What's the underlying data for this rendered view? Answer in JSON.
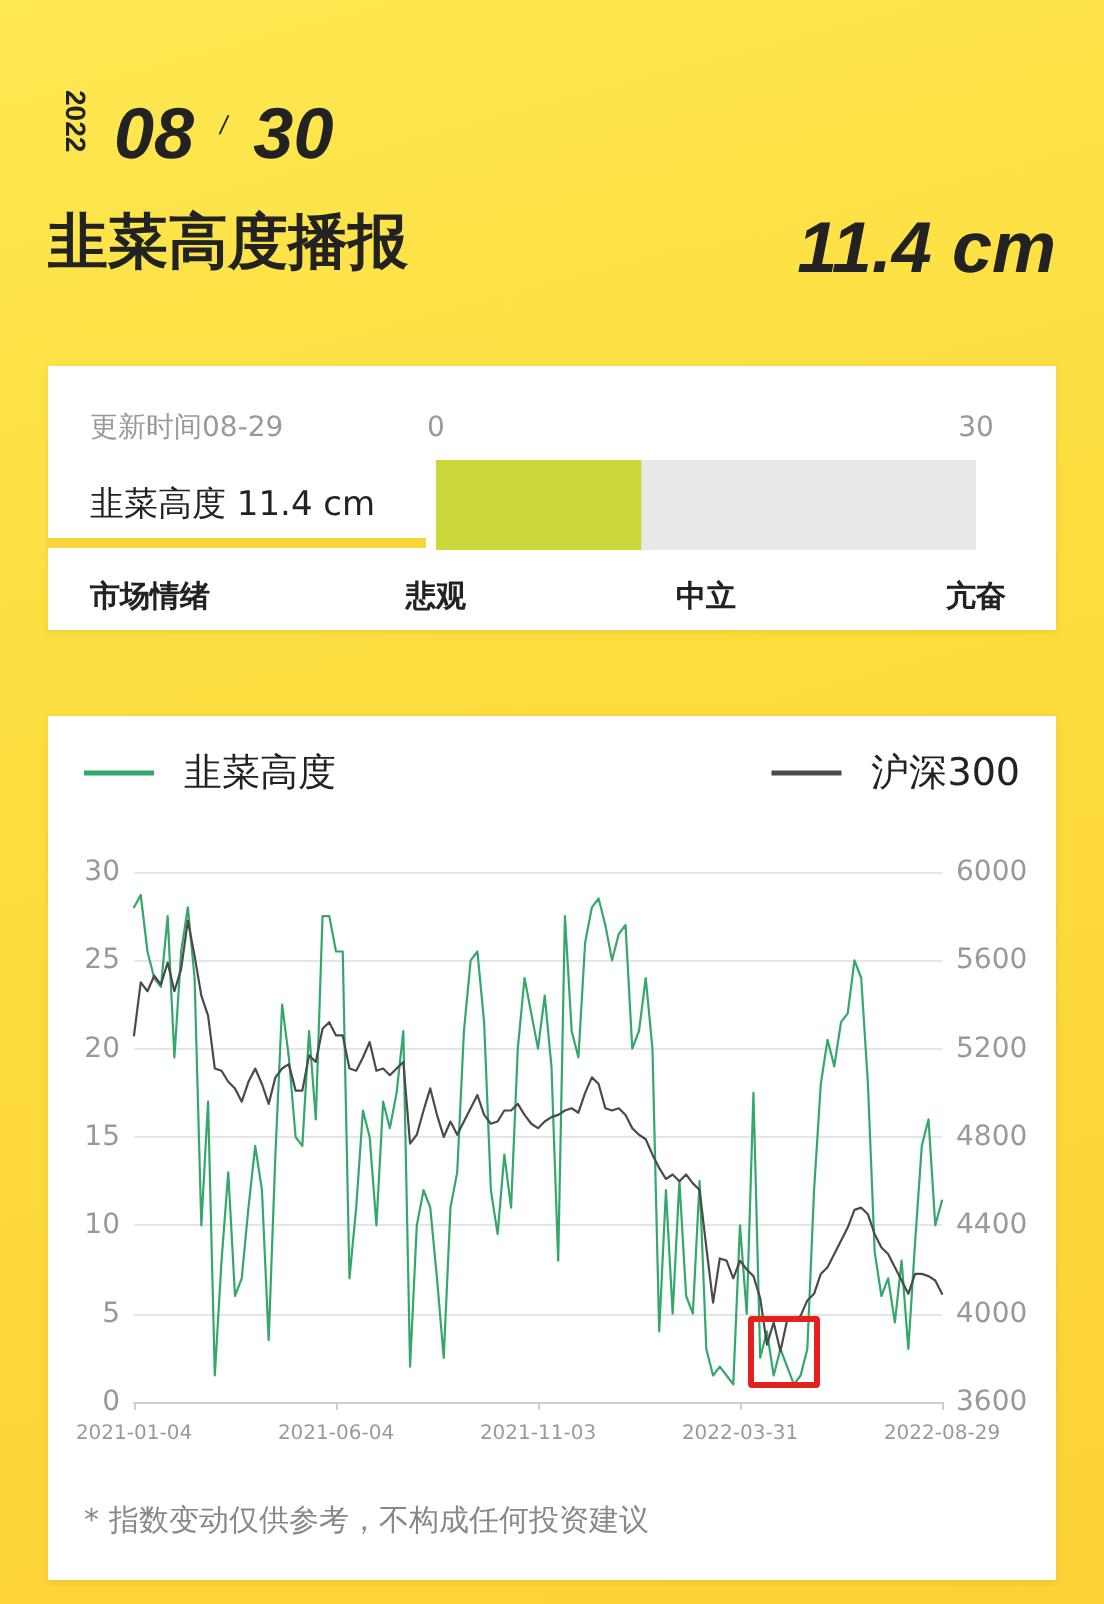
{
  "chart_data": [
    {
      "type": "bar",
      "orientation": "horizontal",
      "title": "韭菜高度播报",
      "subtitle": "更新时间08-29",
      "annotations": [
        "2022",
        "08 $^{/}$ 30",
        "11.4 cm",
        "市场情绪",
        "悲观",
        "中立",
        "亢奋"
      ],
      "categories": [
        "韭菜高度 11.4 cm"
      ],
      "values": [
        11.4
      ],
      "color": "#c9d838",
      "xlim": [
        0,
        30
      ],
      "xticks": [
        0,
        30
      ]
    },
    {
      "type": "line",
      "categories": [
        "2021-01-04",
        null,
        null,
        null,
        null,
        null,
        null,
        null,
        null,
        null,
        null,
        null,
        null,
        null,
        null,
        null,
        null,
        null,
        null,
        null,
        null,
        null,
        null,
        null,
        null,
        null,
        null,
        null,
        null,
        null,
        "2021-06-04",
        null,
        null,
        null,
        null,
        null,
        null,
        null,
        null,
        null,
        null,
        null,
        null,
        null,
        null,
        null,
        null,
        null,
        null,
        null,
        null,
        null,
        null,
        null,
        null,
        null,
        null,
        null,
        null,
        null,
        "2021-11-03",
        null,
        null,
        null,
        null,
        null,
        null,
        null,
        null,
        null,
        null,
        null,
        null,
        null,
        null,
        null,
        null,
        null,
        null,
        null,
        null,
        null,
        null,
        null,
        null,
        null,
        null,
        null,
        null,
        null,
        "2022-03-31",
        null,
        null,
        null,
        null,
        null,
        null,
        null,
        null,
        null,
        null,
        null,
        null,
        null,
        null,
        null,
        null,
        null,
        null,
        null,
        null,
        null,
        null,
        null,
        null,
        null,
        null,
        null,
        null,
        null,
        "2022-08-29"
      ],
      "series": [
        {
          "name": "韭菜高度",
          "color": "#33a86a",
          "values": [
            28.0,
            28.7,
            25.5,
            24.0,
            23.5,
            27.5,
            19.5,
            25.5,
            28.0,
            24.0,
            10.0,
            17.0,
            1.5,
            8.0,
            13.0,
            6.0,
            7.0,
            11.0,
            14.5,
            12.0,
            3.5,
            14.0,
            22.5,
            19.5,
            15.0,
            14.5,
            21.0,
            16.0,
            27.5,
            27.5,
            25.5,
            25.5,
            7.0,
            11.0,
            16.5,
            15.0,
            10.0,
            17.0,
            15.5,
            17.5,
            21.0,
            2.0,
            10.0,
            12.0,
            11.0,
            7.0,
            2.5,
            11.0,
            13.0,
            21.0,
            25.0,
            25.5,
            21.5,
            12.0,
            9.5,
            14.0,
            11.0,
            20.0,
            24.0,
            22.0,
            20.0,
            23.0,
            19.0,
            8.0,
            27.5,
            21.0,
            19.5,
            26.0,
            28.0,
            28.5,
            27.0,
            25.0,
            26.5,
            27.0,
            20.0,
            21.0,
            24.0,
            20.0,
            4.0,
            12.0,
            5.0,
            12.5,
            6.0,
            5.0,
            12.5,
            3.0,
            1.5,
            2.0,
            1.5,
            1.0,
            10.0,
            5.0,
            17.5,
            2.5,
            4.0,
            1.5,
            3.0,
            2.0,
            1.0,
            1.5,
            3.0,
            12.0,
            18.0,
            20.5,
            19.0,
            21.5,
            22.0,
            25.0,
            24.0,
            18.0,
            8.5,
            6.0,
            7.0,
            4.5,
            8.0,
            3.0,
            9.0,
            14.5,
            16.0,
            10.0,
            11.4
          ]
        },
        {
          "name": "沪深300",
          "color": "#4a4a4a",
          "axis": "y2",
          "values": [
            5260,
            5500,
            5460,
            5530,
            5490,
            5590,
            5460,
            5560,
            5780,
            5620,
            5440,
            5350,
            5110,
            5100,
            5050,
            5020,
            4960,
            5050,
            5110,
            5040,
            4950,
            5070,
            5110,
            5130,
            5010,
            5010,
            5170,
            5140,
            5290,
            5320,
            5260,
            5260,
            5110,
            5100,
            5160,
            5230,
            5100,
            5110,
            5080,
            5110,
            5140,
            4770,
            4810,
            4920,
            5020,
            4900,
            4800,
            4870,
            4810,
            4870,
            4930,
            4990,
            4900,
            4860,
            4870,
            4920,
            4920,
            4950,
            4900,
            4860,
            4840,
            4870,
            4890,
            4900,
            4920,
            4930,
            4910,
            5000,
            5070,
            5040,
            4930,
            4920,
            4930,
            4900,
            4840,
            4810,
            4790,
            4720,
            4660,
            4610,
            4630,
            4600,
            4630,
            4590,
            4560,
            4300,
            4050,
            4250,
            4240,
            4160,
            4240,
            4200,
            4170,
            4070,
            3860,
            3960,
            3830,
            3970,
            3970,
            3990,
            4060,
            4090,
            4180,
            4210,
            4270,
            4330,
            4390,
            4470,
            4480,
            4450,
            4360,
            4300,
            4270,
            4210,
            4150,
            4090,
            4180,
            4180,
            4170,
            4150,
            4090
          ]
        }
      ],
      "ylim": [
        0,
        30
      ],
      "yticks": [
        0,
        5,
        10,
        15,
        20,
        25,
        30
      ],
      "y2lim": [
        3600,
        6000
      ],
      "y2ticks": [
        3600,
        4000,
        4400,
        4800,
        5200,
        5600,
        6000
      ],
      "grid": "y",
      "legend": "top",
      "marker": "none",
      "annotations": [
        "* 指数变动仅供参考，不构成任何投资建议"
      ]
    }
  ]
}
